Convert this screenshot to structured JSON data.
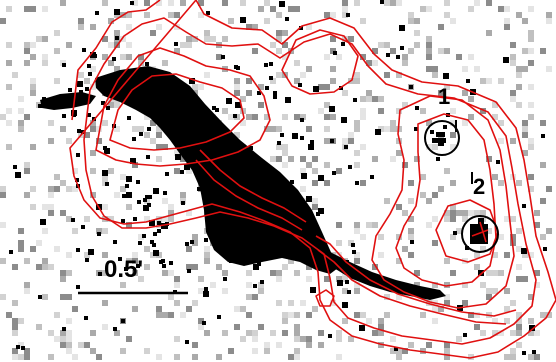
{
  "image": {
    "description_colors": {
      "background": "#ffffff",
      "emission": "#000000",
      "noise": "#9a9a9a",
      "contour": "#e01010",
      "marker": "#000000"
    }
  },
  "sources": [
    {
      "id": "source-1",
      "label": "1"
    },
    {
      "id": "source-2",
      "label": "2"
    }
  ],
  "scale_bar": {
    "label": "0.5'"
  }
}
